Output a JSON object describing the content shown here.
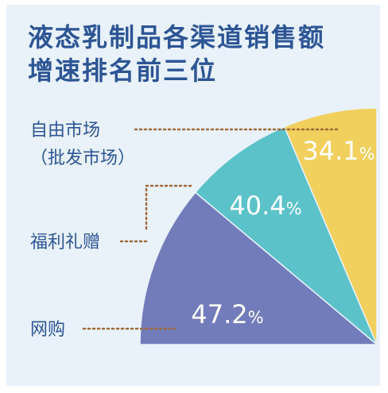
{
  "title_line1": "液态乳制品各渠道销售额",
  "title_line2": "增速排名前三位",
  "chart_data": {
    "type": "pie",
    "title": "液态乳制品各渠道销售额增速排名前三位",
    "series": [
      {
        "name": "自由市场（批发市场）",
        "label_lines": [
          "自由市场",
          "（批发市场）"
        ],
        "value": 34.1,
        "label": "34.1",
        "color": "#f1d05e",
        "text_color": "#333333"
      },
      {
        "name": "福利礼赠",
        "label_lines": [
          "福利礼赠"
        ],
        "value": 40.4,
        "label": "40.4",
        "color": "#5cc2c9",
        "text_color": "#ffffff"
      },
      {
        "name": "网购",
        "label_lines": [
          "网购"
        ],
        "value": 47.2,
        "label": "47.2",
        "color": "#737cba",
        "text_color": "#ffffff"
      }
    ],
    "unit": "%"
  },
  "colors": {
    "background": "#e9f2fa",
    "title": "#2d5595",
    "leader": "#a06a38"
  }
}
